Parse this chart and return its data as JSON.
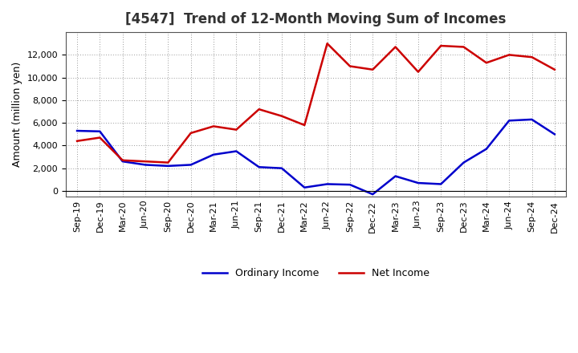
{
  "title": "[4547]  Trend of 12-Month Moving Sum of Incomes",
  "ylabel": "Amount (million yen)",
  "background_color": "#ffffff",
  "grid_color": "#999999",
  "x_labels": [
    "Sep-19",
    "Dec-19",
    "Mar-20",
    "Jun-20",
    "Sep-20",
    "Dec-20",
    "Mar-21",
    "Jun-21",
    "Sep-21",
    "Dec-21",
    "Mar-22",
    "Jun-22",
    "Sep-22",
    "Dec-22",
    "Mar-23",
    "Jun-23",
    "Sep-23",
    "Dec-23",
    "Mar-24",
    "Jun-24",
    "Sep-24",
    "Dec-24"
  ],
  "ordinary_income": [
    5300,
    5250,
    2600,
    2300,
    2200,
    2300,
    3200,
    3500,
    2100,
    2000,
    300,
    600,
    550,
    -300,
    1300,
    700,
    600,
    2500,
    3700,
    6200,
    6300,
    5000
  ],
  "net_income": [
    4400,
    4700,
    2700,
    2600,
    2500,
    5100,
    5700,
    5400,
    7200,
    6600,
    5800,
    13000,
    11000,
    10700,
    12700,
    10500,
    12800,
    12700,
    11300,
    12000,
    11800,
    10700
  ],
  "ordinary_income_color": "#0000cc",
  "net_income_color": "#cc0000",
  "ylim_min": -500,
  "ylim_max": 14000,
  "yticks": [
    0,
    2000,
    4000,
    6000,
    8000,
    10000,
    12000
  ],
  "line_width": 1.8,
  "title_fontsize": 12,
  "title_color": "#333333",
  "legend_ordinary": "Ordinary Income",
  "legend_net": "Net Income",
  "tick_fontsize": 8,
  "ylabel_fontsize": 9
}
